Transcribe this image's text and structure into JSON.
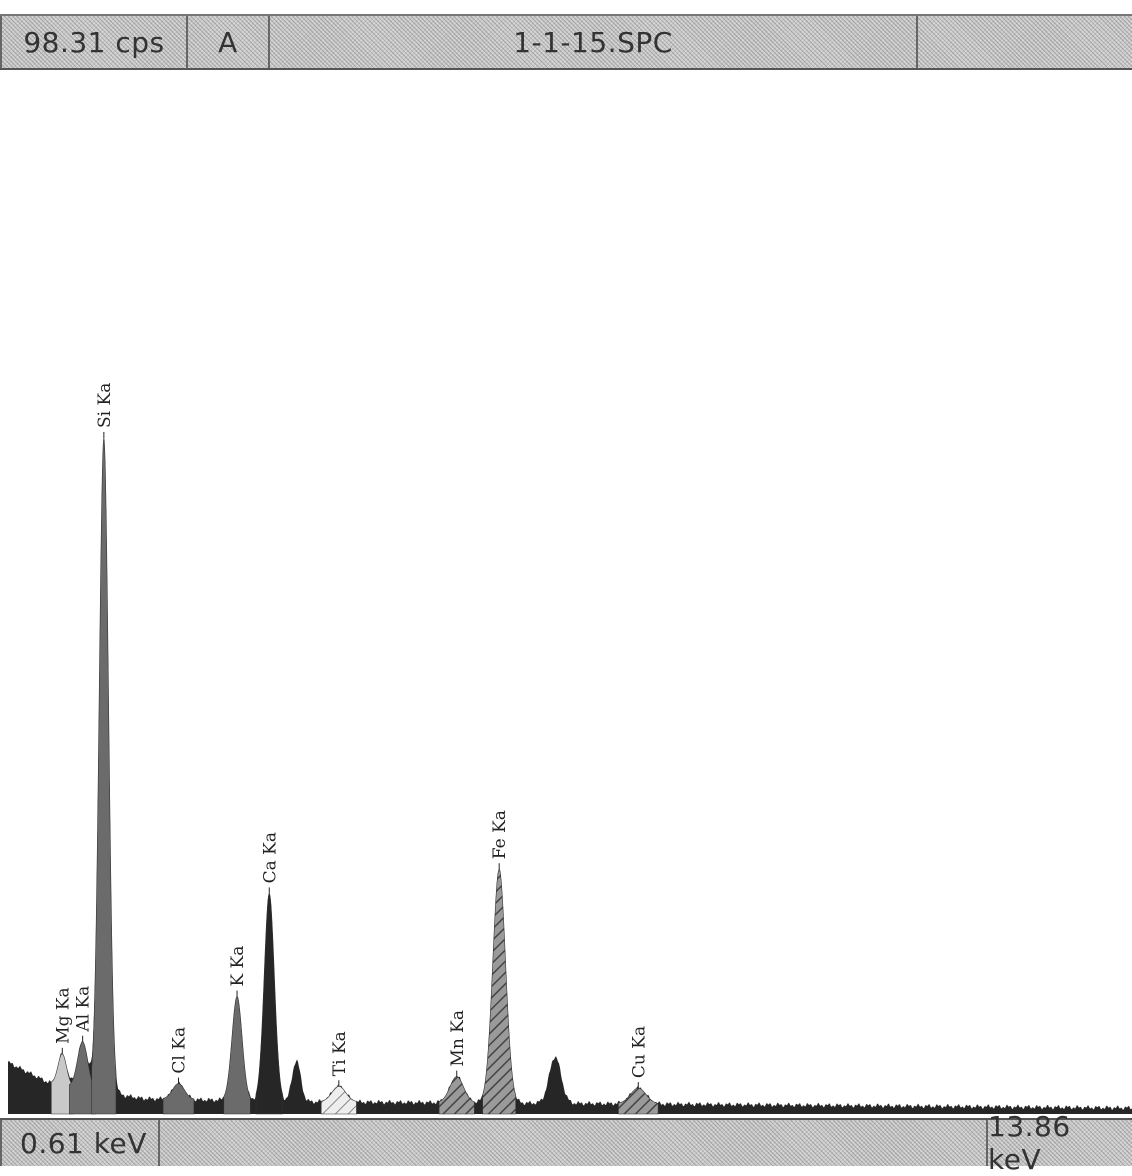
{
  "header": {
    "count_rate": "98.31 cps",
    "mode": "A",
    "filename": "1-1-15.SPC"
  },
  "footer": {
    "energy_start": "0.61 keV",
    "energy_end": "13.86 keV"
  },
  "chart_data": {
    "type": "area",
    "title": "1-1-15.SPC",
    "xlabel": "",
    "ylabel": "",
    "xlim": [
      0.61,
      13.86
    ],
    "ylim": [
      0,
      100
    ],
    "grid": false,
    "peaks": [
      {
        "label": "Mg Ka",
        "energy": 1.25,
        "height": 3.0,
        "width": 0.05,
        "style": "light"
      },
      {
        "label": "Al Ka",
        "energy": 1.49,
        "height": 4.5,
        "width": 0.06,
        "style": "medium"
      },
      {
        "label": "Si Ka",
        "energy": 1.74,
        "height": 63.0,
        "width": 0.055,
        "style": "medium"
      },
      {
        "label": "Cl Ka",
        "energy": 2.62,
        "height": 1.5,
        "width": 0.07,
        "style": "medium"
      },
      {
        "label": "K Ka",
        "energy": 3.31,
        "height": 10.0,
        "width": 0.06,
        "style": "medium"
      },
      {
        "label": "Ca Ka",
        "energy": 3.69,
        "height": 20.0,
        "width": 0.06,
        "style": "dark"
      },
      {
        "label": "Ti Ka",
        "energy": 4.51,
        "height": 1.5,
        "width": 0.08,
        "style": "hatch-light"
      },
      {
        "label": "Mn Ka",
        "energy": 5.9,
        "height": 2.5,
        "width": 0.08,
        "style": "hatch"
      },
      {
        "label": "Fe Ka",
        "energy": 6.4,
        "height": 22.5,
        "width": 0.075,
        "style": "hatch"
      },
      {
        "label": "Cu Ka",
        "energy": 8.04,
        "height": 1.5,
        "width": 0.09,
        "style": "hatch"
      }
    ],
    "unlabeled_peaks": [
      {
        "energy": 4.01,
        "height": 4.0,
        "width": 0.05
      },
      {
        "energy": 7.06,
        "height": 4.5,
        "width": 0.07
      }
    ],
    "baseline": [
      {
        "energy": 0.61,
        "value": 5.0
      },
      {
        "energy": 1.1,
        "value": 3.0
      },
      {
        "energy": 2.2,
        "value": 1.5
      },
      {
        "energy": 4.0,
        "value": 1.2
      },
      {
        "energy": 8.0,
        "value": 1.0
      },
      {
        "energy": 13.86,
        "value": 0.6
      }
    ],
    "colors": {
      "dark": "#262626",
      "medium": "#6b6b6b",
      "light": "#c9c9c9",
      "hatch": "#8a8a8a",
      "text": "#222222"
    }
  }
}
